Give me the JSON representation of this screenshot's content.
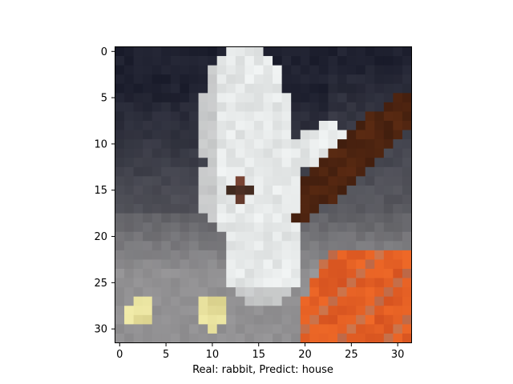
{
  "figure": {
    "caption": "Real: rabbit, Predict: house",
    "x_ticks": [
      "0",
      "5",
      "10",
      "15",
      "20",
      "25",
      "30"
    ],
    "y_ticks": [
      "0",
      "5",
      "10",
      "15",
      "20",
      "25",
      "30"
    ],
    "grid_size": 32
  },
  "image": {
    "subject": "pixelated low-resolution photo of a white rabbit on gray ground with orange carrots and a brown stick",
    "colors": {
      "bg_dark": "#1b1d2c",
      "bg_gray": "#5f5f64",
      "ground": "#8e8d8f",
      "rabbit": "#f1f4f4",
      "rabbit_shade": "#c9cccc",
      "eye": "#7a4434",
      "stick": "#5a2a12",
      "carrot": "#f06a28",
      "carrot_dark": "#c9481c",
      "yellow": "#f2ecaa"
    }
  }
}
